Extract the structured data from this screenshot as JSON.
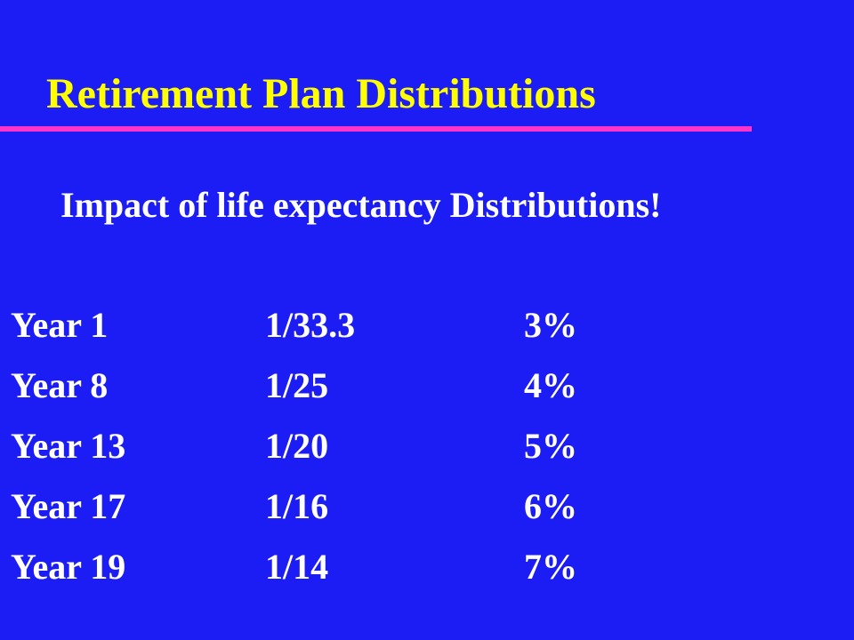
{
  "slide": {
    "title": "Retirement Plan Distributions",
    "subtitle": "Impact of life expectancy Distributions!",
    "rows": [
      {
        "year": "Year 1",
        "fraction": "1/33.3",
        "percent": "3%"
      },
      {
        "year": "Year 8",
        "fraction": "1/25",
        "percent": "4%"
      },
      {
        "year": "Year 13",
        "fraction": "1/20",
        "percent": "5%"
      },
      {
        "year": "Year 17",
        "fraction": "1/16",
        "percent": "6%"
      },
      {
        "year": "Year 19",
        "fraction": "1/14",
        "percent": "7%"
      }
    ]
  },
  "colors": {
    "background": "#1c1cf4",
    "title": "#ffff00",
    "rule": "#ff33cc",
    "text": "#ffffff"
  }
}
